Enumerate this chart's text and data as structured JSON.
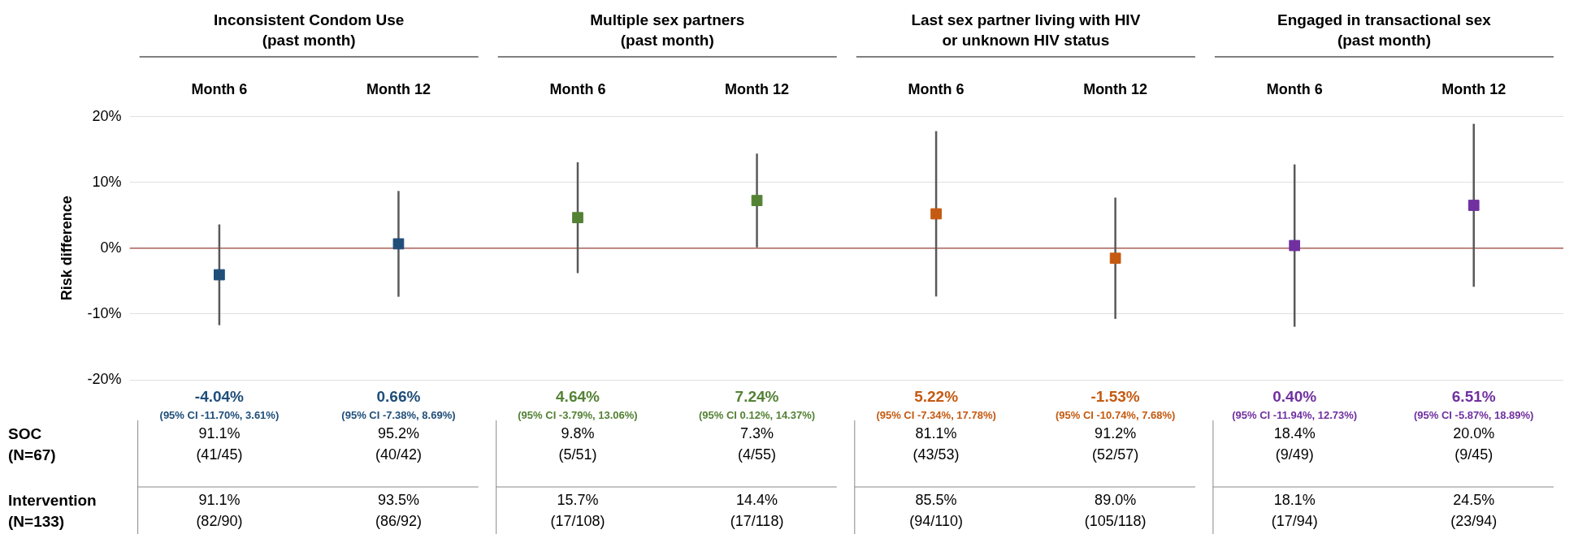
{
  "chart_data": {
    "type": "scatter",
    "ylabel": "Risk difference",
    "categories": [
      "Month 6",
      "Month 12",
      "Month 6",
      "Month 12",
      "Month 6",
      "Month 12",
      "Month 6",
      "Month 12"
    ],
    "values": [
      -4.04,
      0.66,
      4.64,
      7.24,
      5.22,
      -1.53,
      0.4,
      6.51
    ],
    "errors": [
      [
        -11.7,
        3.61
      ],
      [
        -7.38,
        8.69
      ],
      [
        -3.79,
        13.06
      ],
      [
        0.12,
        14.37
      ],
      [
        -7.34,
        17.78
      ],
      [
        -10.74,
        7.68
      ],
      [
        -11.94,
        12.73
      ],
      [
        -5.87,
        18.89
      ]
    ],
    "colors": [
      "#1f4e79",
      "#1f4e79",
      "#548235",
      "#548235",
      "#c55a11",
      "#c55a11",
      "#7030a0",
      "#7030a0"
    ],
    "value_labels": [
      "-4.04%",
      "0.66%",
      "4.64%",
      "7.24%",
      "5.22%",
      "-1.53%",
      "0.40%",
      "6.51%"
    ],
    "marker": "square",
    "ylim": [
      -20,
      20
    ],
    "yticks": [
      {
        "value": -20,
        "label": "-20%"
      },
      {
        "value": -10,
        "label": "-10%"
      },
      {
        "value": 0,
        "label": "0%"
      },
      {
        "value": 10,
        "label": "10%"
      },
      {
        "value": 20,
        "label": "20%"
      }
    ],
    "grid": "y",
    "ref_lines": [
      {
        "axis": "y",
        "value": 0,
        "color": "#a0463c"
      }
    ],
    "annotations": [
      "Inconsistent Condom Use\n(past month)",
      "Multiple sex partners\n(past month)",
      "Last sex partner living with HIV\nor unknown HIV status",
      "Engaged in transactional sex\n(past month)",
      "(95% CI -11.70%, 3.61%)",
      "(95% CI -7.38%, 8.69%)",
      "(95% CI -3.79%, 13.06%)",
      "(95% CI 0.12%, 14.37%)",
      "(95% CI -7.34%, 17.78%)",
      "(95% CI -10.74%, 7.68%)",
      "(95% CI -11.94%, 12.73%)",
      "(95% CI -5.87%, 18.89%)",
      "SOC\n(N=67)",
      "Intervention\n(N=133)",
      "91.1%\n(41/45)",
      "95.2%\n(40/42)",
      "9.8%\n(5/51)",
      "7.3%\n(4/55)",
      "81.1%\n(43/53)",
      "91.2%\n(52/57)",
      "18.4%\n(9/49)",
      "20.0%\n(9/45)",
      "91.1%\n(82/90)",
      "93.5%\n(86/92)",
      "15.7%\n(17/108)",
      "14.4%\n(17/118)",
      "85.5%\n(94/110)",
      "89.0%\n(105/118)",
      "18.1%\n(17/94)",
      "24.5%\n(23/94)"
    ]
  }
}
